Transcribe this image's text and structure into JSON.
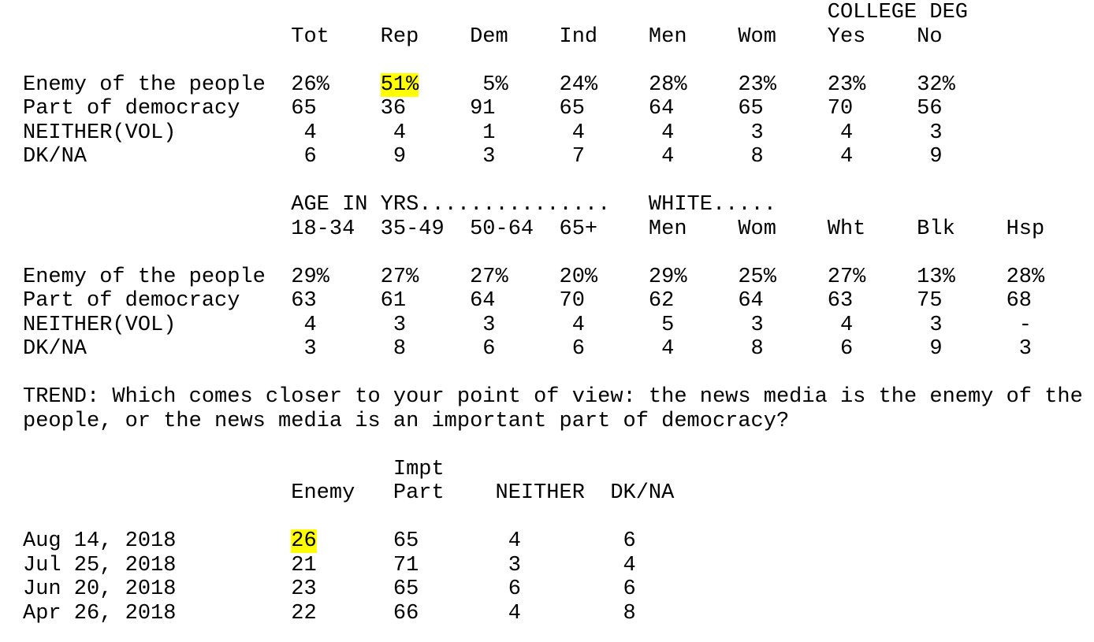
{
  "highlight_color": "#ffff00",
  "table1": {
    "corner_header": "COLLEGE DEG",
    "columns": [
      "Tot",
      "Rep",
      "Dem",
      "Ind",
      "Men",
      "Wom",
      "Yes",
      "No"
    ],
    "rows": [
      {
        "label": "Enemy of the people",
        "values": [
          "26%",
          "51%",
          "5%",
          "24%",
          "28%",
          "23%",
          "23%",
          "32%"
        ],
        "highlight": [
          1
        ]
      },
      {
        "label": "Part of democracy",
        "values": [
          "65",
          "36",
          "91",
          "65",
          "64",
          "65",
          "70",
          "56"
        ]
      },
      {
        "label": "NEITHER(VOL)",
        "values": [
          "4",
          "4",
          "1",
          "4",
          "4",
          "3",
          "4",
          "3"
        ]
      },
      {
        "label": "DK/NA",
        "values": [
          "6",
          "9",
          "3",
          "7",
          "4",
          "8",
          "4",
          "9"
        ]
      }
    ]
  },
  "table2": {
    "group_headers": [
      "AGE IN YRS...............",
      "WHITE....."
    ],
    "columns": [
      "18-34",
      "35-49",
      "50-64",
      "65+",
      "Men",
      "Wom",
      "Wht",
      "Blk",
      "Hsp"
    ],
    "rows": [
      {
        "label": "Enemy of the people",
        "values": [
          "29%",
          "27%",
          "27%",
          "20%",
          "29%",
          "25%",
          "27%",
          "13%",
          "28%"
        ]
      },
      {
        "label": "Part of democracy",
        "values": [
          "63",
          "61",
          "64",
          "70",
          "62",
          "64",
          "63",
          "75",
          "68"
        ]
      },
      {
        "label": "NEITHER(VOL)",
        "values": [
          "4",
          "3",
          "3",
          "4",
          "5",
          "3",
          "4",
          "3",
          "-"
        ]
      },
      {
        "label": "DK/NA",
        "values": [
          "3",
          "8",
          "6",
          "6",
          "4",
          "8",
          "6",
          "9",
          "3"
        ]
      }
    ]
  },
  "trend": {
    "question_lines": [
      "TREND: Which comes closer to your point of view: the news media is the enemy of the",
      "people, or the news media is an important part of democracy?"
    ],
    "columns_top": "Impt",
    "columns": [
      "Enemy",
      "Part",
      "NEITHER",
      "DK/NA"
    ],
    "rows": [
      {
        "label": "Aug 14, 2018",
        "values": [
          "26",
          "65",
          "4",
          "6"
        ],
        "highlight": [
          0
        ]
      },
      {
        "label": "Jul 25, 2018",
        "values": [
          "21",
          "71",
          "3",
          "4"
        ]
      },
      {
        "label": "Jun 20, 2018",
        "values": [
          "23",
          "65",
          "6",
          "6"
        ]
      },
      {
        "label": "Apr 26, 2018",
        "values": [
          "22",
          "66",
          "4",
          "8"
        ]
      }
    ]
  },
  "chart_data": {
    "type": "table",
    "title": "News media: enemy of the people vs important part of democracy (crosstabs and trend)",
    "tables": [
      {
        "columns": [
          "Tot",
          "Rep",
          "Dem",
          "Ind",
          "Men",
          "Wom",
          "COLLEGE DEG Yes",
          "COLLEGE DEG No"
        ],
        "rows": {
          "Enemy of the people": [
            26,
            51,
            5,
            24,
            28,
            23,
            23,
            32
          ],
          "Part of democracy": [
            65,
            36,
            91,
            65,
            64,
            65,
            70,
            56
          ],
          "NEITHER(VOL)": [
            4,
            4,
            1,
            4,
            4,
            3,
            4,
            3
          ],
          "DK/NA": [
            6,
            9,
            3,
            7,
            4,
            8,
            4,
            9
          ]
        }
      },
      {
        "columns": [
          "Age 18-34",
          "Age 35-49",
          "Age 50-64",
          "Age 65+",
          "White Men",
          "White Wom",
          "Wht",
          "Blk",
          "Hsp"
        ],
        "rows": {
          "Enemy of the people": [
            29,
            27,
            27,
            20,
            29,
            25,
            27,
            13,
            28
          ],
          "Part of democracy": [
            63,
            61,
            64,
            70,
            62,
            64,
            63,
            75,
            68
          ],
          "NEITHER(VOL)": [
            4,
            3,
            3,
            4,
            5,
            3,
            4,
            3,
            null
          ],
          "DK/NA": [
            3,
            8,
            6,
            6,
            4,
            8,
            6,
            9,
            3
          ]
        }
      },
      {
        "columns": [
          "Enemy",
          "Impt Part",
          "NEITHER",
          "DK/NA"
        ],
        "rows": {
          "Aug 14, 2018": [
            26,
            65,
            4,
            6
          ],
          "Jul 25, 2018": [
            21,
            71,
            3,
            4
          ],
          "Jun 20, 2018": [
            23,
            65,
            6,
            6
          ],
          "Apr 26, 2018": [
            22,
            66,
            4,
            8
          ]
        }
      }
    ]
  }
}
